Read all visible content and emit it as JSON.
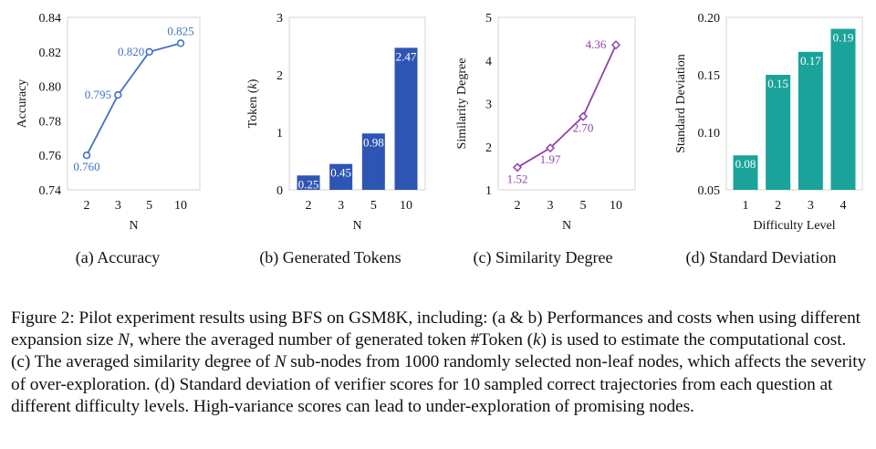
{
  "chart_data": [
    {
      "type": "line",
      "x": [
        "2",
        "3",
        "5",
        "10"
      ],
      "values": [
        0.76,
        0.795,
        0.82,
        0.825
      ],
      "value_labels": [
        "0.760",
        "0.795",
        "0.820",
        "0.825"
      ],
      "xlabel": "N",
      "ylabel": "Accuracy",
      "ylim": [
        0.74,
        0.84
      ],
      "yticks": [
        "0.74",
        "0.76",
        "0.78",
        "0.80",
        "0.82",
        "0.84"
      ],
      "color": "#4472c4",
      "marker": "circle",
      "subcaption": "(a)  Accuracy"
    },
    {
      "type": "bar",
      "categories": [
        "2",
        "3",
        "5",
        "10"
      ],
      "values": [
        0.25,
        0.45,
        0.98,
        2.47
      ],
      "value_labels": [
        "0.25",
        "0.45",
        "0.98",
        "2.47"
      ],
      "xlabel": "N",
      "ylabel_prefix": "Token (",
      "ylabel_italic": "k",
      "ylabel_suffix": ")",
      "ylim": [
        0,
        3
      ],
      "yticks": [
        "0",
        "1",
        "2",
        "3"
      ],
      "color": "#2e55b4",
      "subcaption": "(b)  Generated Tokens"
    },
    {
      "type": "line",
      "x": [
        "2",
        "3",
        "5",
        "10"
      ],
      "values": [
        1.52,
        1.97,
        2.7,
        4.36
      ],
      "value_labels": [
        "1.52",
        "1.97",
        "2.70",
        "4.36"
      ],
      "xlabel": "N",
      "ylabel": "Similarity Degree",
      "ylim": [
        1,
        5
      ],
      "yticks": [
        "1",
        "2",
        "3",
        "4",
        "5"
      ],
      "color": "#8e44ad",
      "marker": "diamond",
      "subcaption": "(c)  Similarity Degree"
    },
    {
      "type": "bar",
      "categories": [
        "1",
        "2",
        "3",
        "4"
      ],
      "values": [
        0.08,
        0.15,
        0.17,
        0.19
      ],
      "value_labels": [
        "0.08",
        "0.15",
        "0.17",
        "0.19"
      ],
      "xlabel": "Difficulty Level",
      "ylabel": "Standard Deviation",
      "ylim": [
        0.05,
        0.2
      ],
      "yticks": [
        "0.05",
        "0.10",
        "0.15",
        "0.20"
      ],
      "color": "#1aa39a",
      "subcaption": "(d)  Standard Deviation"
    }
  ],
  "caption": {
    "p1": "Figure 2: Pilot experiment results using BFS on GSM8K, including: (a & b) Performances and costs when using different expansion size ",
    "N1": "N",
    "p2": ", where the averaged number of generated token #Token (",
    "k": "k",
    "p3": ") is used to estimate the computational cost. (c) The averaged similarity degree of ",
    "N2": "N",
    "p4": " sub-nodes from 1000 randomly selected non-leaf nodes, which affects the severity of over-exploration. (d) Standard deviation of verifier scores for 10 sampled correct trajectories from each question at different difficulty levels. High-variance scores can lead to under-exploration of promising nodes."
  }
}
